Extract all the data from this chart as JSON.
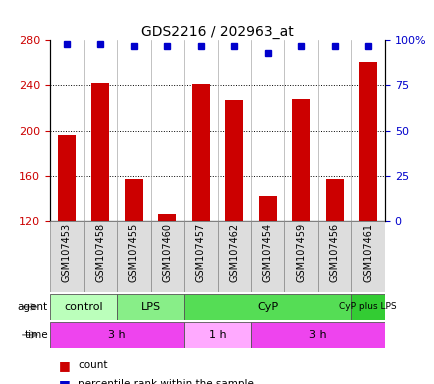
{
  "title": "GDS2216 / 202963_at",
  "samples": [
    "GSM107453",
    "GSM107458",
    "GSM107455",
    "GSM107460",
    "GSM107457",
    "GSM107462",
    "GSM107454",
    "GSM107459",
    "GSM107456",
    "GSM107461"
  ],
  "count_values": [
    196,
    242,
    157,
    126,
    241,
    227,
    142,
    228,
    157,
    261
  ],
  "percentile_values": [
    98,
    98,
    97,
    97,
    97,
    97,
    93,
    97,
    97,
    97
  ],
  "ylim_left": [
    120,
    280
  ],
  "yticks_left": [
    120,
    160,
    200,
    240,
    280
  ],
  "ylim_right": [
    0,
    100
  ],
  "yticks_right": [
    0,
    25,
    50,
    75,
    100
  ],
  "bar_color": "#cc0000",
  "dot_color": "#0000cc",
  "agent_groups": [
    {
      "label": "control",
      "start": 0,
      "end": 2,
      "color": "#bbffbb"
    },
    {
      "label": "LPS",
      "start": 2,
      "end": 4,
      "color": "#88ee88"
    },
    {
      "label": "CyP",
      "start": 4,
      "end": 9,
      "color": "#55dd55"
    },
    {
      "label": "CyP plus LPS",
      "start": 9,
      "end": 10,
      "color": "#33cc33"
    }
  ],
  "time_groups": [
    {
      "label": "3 h",
      "start": 0,
      "end": 4,
      "color": "#ee44ee"
    },
    {
      "label": "1 h",
      "start": 4,
      "end": 6,
      "color": "#ffaaff"
    },
    {
      "label": "3 h",
      "start": 6,
      "end": 10,
      "color": "#ee44ee"
    }
  ],
  "legend_count_color": "#cc0000",
  "legend_dot_color": "#0000cc",
  "background_color": "#ffffff",
  "tick_label_color_left": "#cc0000",
  "tick_label_color_right": "#0000cc",
  "xticklabel_bg": "#dddddd"
}
